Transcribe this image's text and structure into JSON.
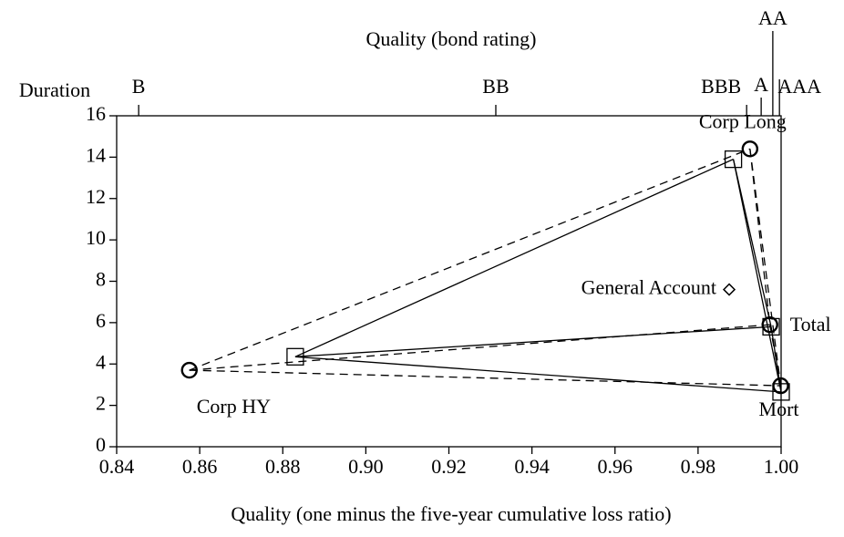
{
  "chart_data": {
    "type": "scatter",
    "title": "Quality (bond rating)",
    "x_label": "Quality (one minus the five-year cumulative loss ratio)",
    "y_label": "Duration",
    "categories": [
      "Corp HY",
      "Corp Long",
      "Total",
      "Mort"
    ],
    "series": [
      {
        "marker": "square",
        "line_style": "solid",
        "color": "#000000",
        "x": [
          0.883,
          0.9885,
          0.9976,
          1.0
        ],
        "values": [
          4.35,
          13.9,
          5.8,
          2.65
        ]
      },
      {
        "marker": "circle",
        "line_style": "dashed",
        "color": "#000000",
        "x": [
          0.8575,
          0.9925,
          0.9973,
          0.9999
        ],
        "values": [
          3.7,
          14.4,
          5.9,
          2.95
        ]
      }
    ],
    "annotations": [
      {
        "text": "General Account",
        "x": 0.9875,
        "y": 7.6,
        "marker": "diamond"
      }
    ],
    "xlim": [
      0.84,
      1.0
    ],
    "xticks": [
      0.84,
      0.86,
      0.88,
      {
        "value": 0.9,
        "label": "0.90"
      },
      0.92,
      0.94,
      0.96,
      0.98,
      {
        "value": 1.0,
        "label": "1.00"
      }
    ],
    "x2ticks": [
      {
        "value": 0.8453,
        "label": "B"
      },
      {
        "value": 0.9313,
        "label": "BB"
      },
      {
        "value": 0.9917,
        "label": "BBB"
      },
      {
        "value": 0.9952,
        "label": "A"
      },
      {
        "value": 0.998,
        "label": "AA"
      },
      {
        "value": 0.9996,
        "label": "AAA"
      }
    ],
    "ylim": [
      0,
      16
    ],
    "yticks": [
      0,
      2,
      4,
      6,
      8,
      10,
      12,
      14,
      16
    ],
    "grid": false
  }
}
